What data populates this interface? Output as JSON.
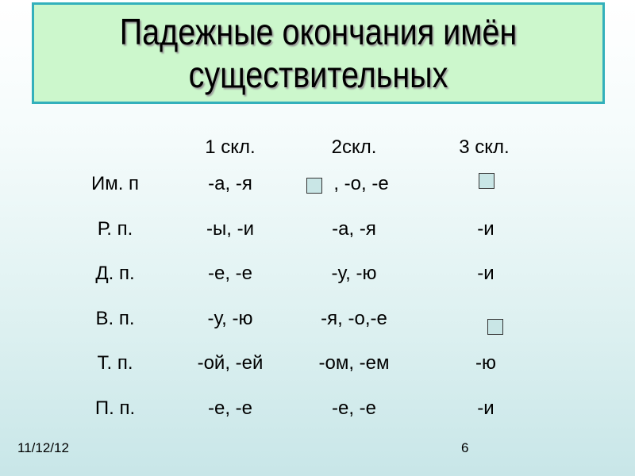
{
  "title": {
    "line1": "Падежные окончания имён",
    "line2": "существительных"
  },
  "table": {
    "headers": [
      "",
      "1 скл.",
      "2скл.",
      "3 скл."
    ],
    "rows": [
      {
        "case": "Им. п",
        "c1": "-а, -я",
        "c2": ", -о, -е",
        "c3": ""
      },
      {
        "case": "Р. п.",
        "c1": "-ы, -и",
        "c2": "-а, -я",
        "c3": "-и"
      },
      {
        "case": "Д. п.",
        "c1": "-е, -е",
        "c2": "-у, -ю",
        "c3": "-и"
      },
      {
        "case": "В. п.",
        "c1": "-у, -ю",
        "c2": "-я, -о,-е",
        "c3": ""
      },
      {
        "case": "Т. п.",
        "c1": "-ой, -ей",
        "c2": "-ом, -ем",
        "c3": "-ю"
      },
      {
        "case": "П. п.",
        "c1": "-е, -е",
        "c2": "-е, -е",
        "c3": "-и"
      }
    ]
  },
  "footer": {
    "date": "11/12/12",
    "page": "6"
  },
  "colors": {
    "title_fill": "#ccf7cc",
    "title_border": "#33b0bb",
    "placeholder": "#c9e6e6"
  }
}
